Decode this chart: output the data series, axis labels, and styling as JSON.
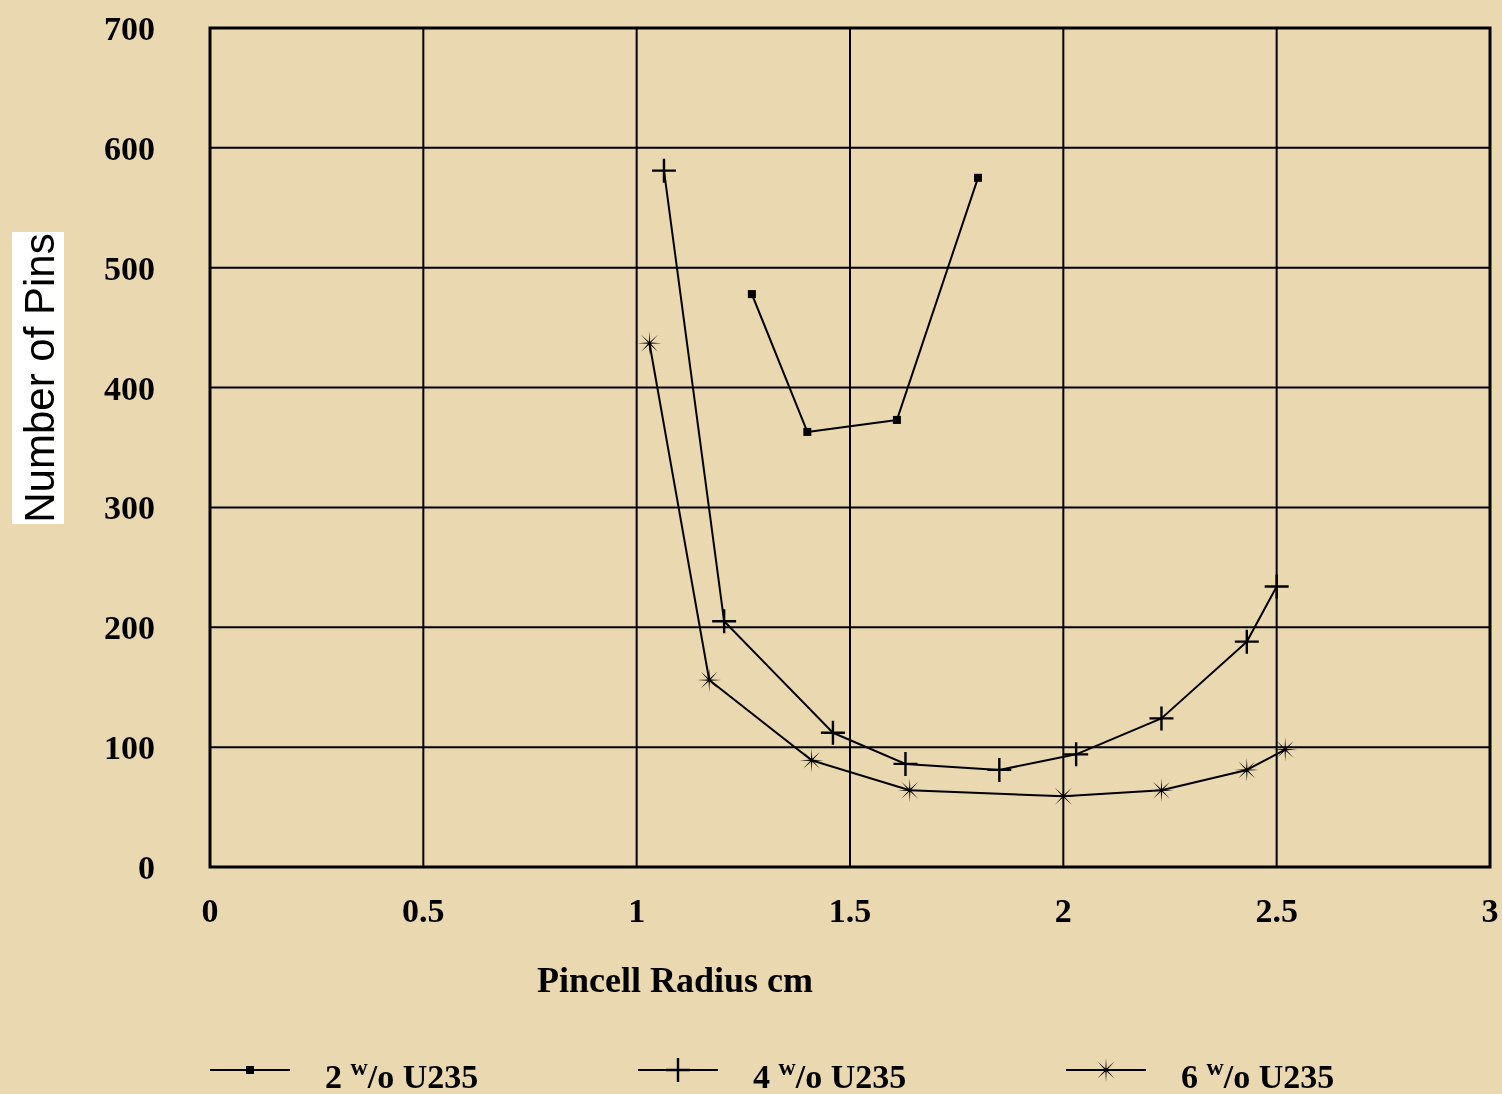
{
  "chart_data": {
    "type": "line",
    "xlabel": "Pincell Radius cm",
    "ylabel": "Number of Pins",
    "xlim": [
      0,
      3
    ],
    "xticks": [
      0,
      0.5,
      1,
      1.5,
      2,
      2.5,
      3
    ],
    "ylim": [
      0,
      700
    ],
    "yticks": [
      0,
      100,
      200,
      300,
      400,
      500,
      600,
      700
    ],
    "grid": true,
    "legend": "bottom",
    "line_style": "solid",
    "series": [
      {
        "name": "2 $^{w}$/o U235",
        "color": "#000000",
        "marker": "square",
        "x": [
          1.27,
          1.4,
          1.61,
          1.8
        ],
        "values": [
          478,
          363,
          373,
          575
        ]
      },
      {
        "name": "4 $^{w}$/o U235",
        "color": "#000000",
        "marker": "cross",
        "x": [
          1.064,
          1.205,
          1.46,
          1.63,
          1.85,
          2.03,
          2.23,
          2.43,
          2.5
        ],
        "values": [
          581,
          205,
          112,
          86,
          81,
          94,
          124,
          188,
          234
        ]
      },
      {
        "name": "6 $^{w}$/o U235",
        "color": "#000000",
        "marker": "star",
        "x": [
          1.03,
          1.17,
          1.41,
          1.64,
          2.0,
          2.23,
          2.43,
          2.52
        ],
        "values": [
          437,
          156,
          89,
          64,
          59,
          64,
          81,
          98
        ]
      }
    ]
  }
}
